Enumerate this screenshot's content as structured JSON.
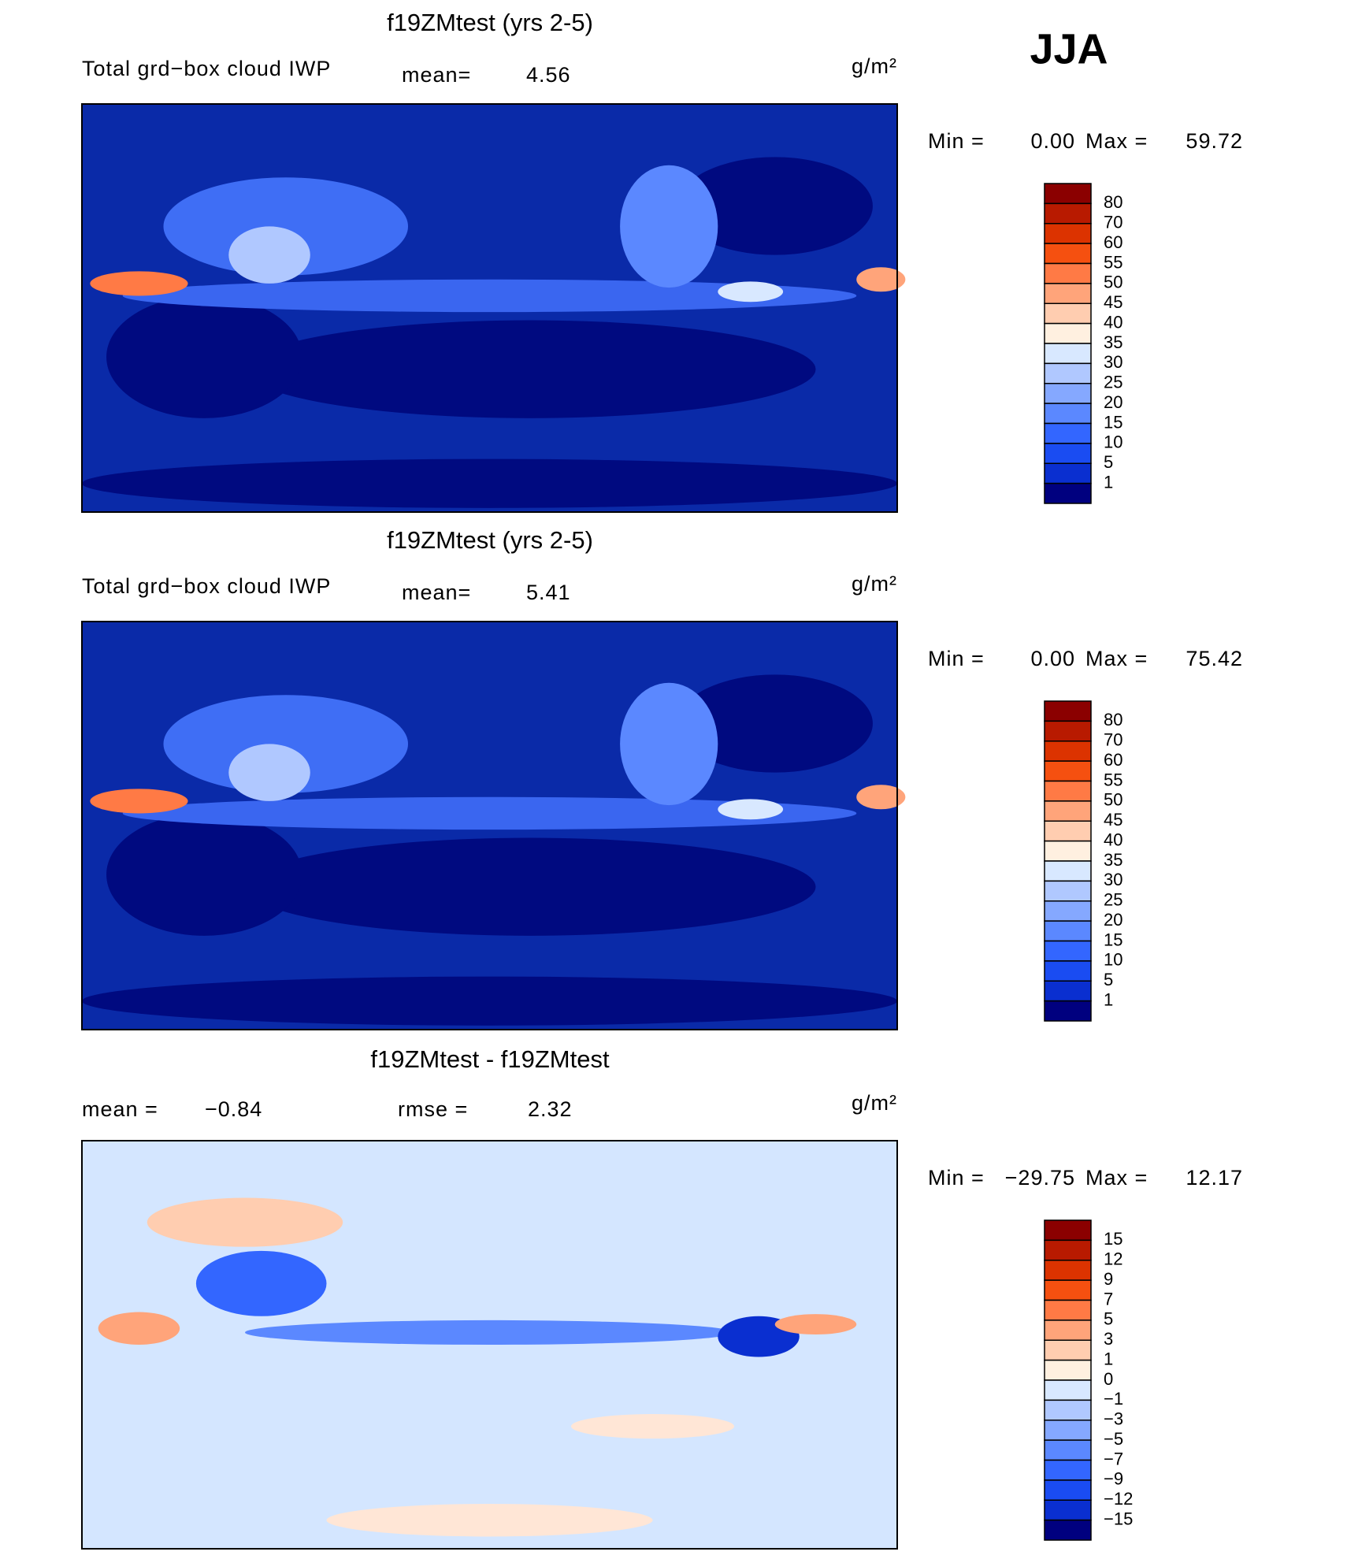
{
  "season": "JJA",
  "panels": [
    {
      "title": "f19ZMtest (yrs 2-5)",
      "field": "Total grd−box cloud IWP",
      "mean_label": "mean=",
      "mean": "4.56",
      "units": "g/m²",
      "min_label": "Min =",
      "min": "0.00",
      "max_label": "Max =",
      "max": "59.72",
      "colorbar": {
        "labels": [
          "80",
          "70",
          "60",
          "55",
          "50",
          "45",
          "40",
          "35",
          "30",
          "25",
          "20",
          "15",
          "10",
          "5",
          "1"
        ],
        "colors": [
          "#8b0000",
          "#b81a00",
          "#dc3300",
          "#f55010",
          "#ff7a45",
          "#ffa47a",
          "#ffcdb0",
          "#fff0e0",
          "#d8e8ff",
          "#b0c8ff",
          "#85a8ff",
          "#5b88ff",
          "#3366ff",
          "#1a4cf2",
          "#0a2fd0",
          "#00007f"
        ]
      }
    },
    {
      "title": "f19ZMtest (yrs 2-5)",
      "field": "Total grd−box cloud IWP",
      "mean_label": "mean=",
      "mean": "5.41",
      "units": "g/m²",
      "min_label": "Min =",
      "min": "0.00",
      "max_label": "Max =",
      "max": "75.42",
      "colorbar": {
        "labels": [
          "80",
          "70",
          "60",
          "55",
          "50",
          "45",
          "40",
          "35",
          "30",
          "25",
          "20",
          "15",
          "10",
          "5",
          "1"
        ],
        "colors": [
          "#8b0000",
          "#b81a00",
          "#dc3300",
          "#f55010",
          "#ff7a45",
          "#ffa47a",
          "#ffcdb0",
          "#fff0e0",
          "#d8e8ff",
          "#b0c8ff",
          "#85a8ff",
          "#5b88ff",
          "#3366ff",
          "#1a4cf2",
          "#0a2fd0",
          "#00007f"
        ]
      }
    },
    {
      "title": "f19ZMtest - f19ZMtest",
      "mean_label": "mean =",
      "mean": "−0.84",
      "rmse_label": "rmse =",
      "rmse": "2.32",
      "units": "g/m²",
      "min_label": "Min =",
      "min": "−29.75",
      "max_label": "Max =",
      "max": "12.17",
      "colorbar": {
        "labels": [
          "15",
          "12",
          "9",
          "7",
          "5",
          "3",
          "1",
          "0",
          "−1",
          "−3",
          "−5",
          "−7",
          "−9",
          "−12",
          "−15"
        ],
        "colors": [
          "#8b0000",
          "#b81a00",
          "#dc3300",
          "#f55010",
          "#ff7a45",
          "#ffa47a",
          "#ffcdb0",
          "#fff0e0",
          "#d8e8ff",
          "#b0c8ff",
          "#85a8ff",
          "#5b88ff",
          "#3366ff",
          "#1a4cf2",
          "#0a2fd0",
          "#00007f"
        ]
      }
    }
  ]
}
